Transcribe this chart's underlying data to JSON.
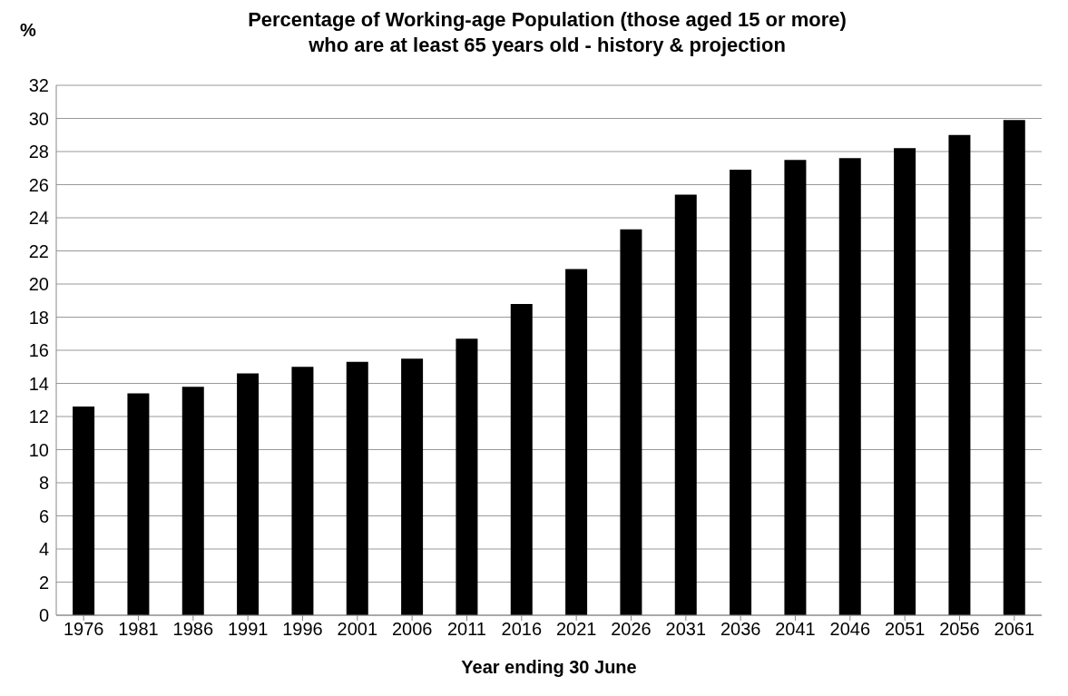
{
  "chart_data": {
    "type": "bar",
    "title": "Percentage of Working-age Population (those aged 15 or more)\nwho are at least 65 years old - history & projection",
    "xlabel": "Year ending 30 June",
    "ylabel": "%",
    "categories": [
      "1976",
      "1981",
      "1986",
      "1991",
      "1996",
      "2001",
      "2006",
      "2011",
      "2016",
      "2021",
      "2026",
      "2031",
      "2036",
      "2041",
      "2046",
      "2051",
      "2056",
      "2061"
    ],
    "values": [
      12.6,
      13.4,
      13.8,
      14.6,
      15.0,
      15.3,
      15.5,
      16.7,
      18.8,
      20.9,
      23.3,
      25.4,
      26.9,
      27.5,
      27.6,
      28.2,
      29.0,
      29.9
    ],
    "color": "#000000",
    "ylim": [
      0,
      32
    ],
    "yticks": [
      0,
      2,
      4,
      6,
      8,
      10,
      12,
      14,
      16,
      18,
      20,
      22,
      24,
      26,
      28,
      30,
      32
    ],
    "grid": "y",
    "legend": false
  }
}
